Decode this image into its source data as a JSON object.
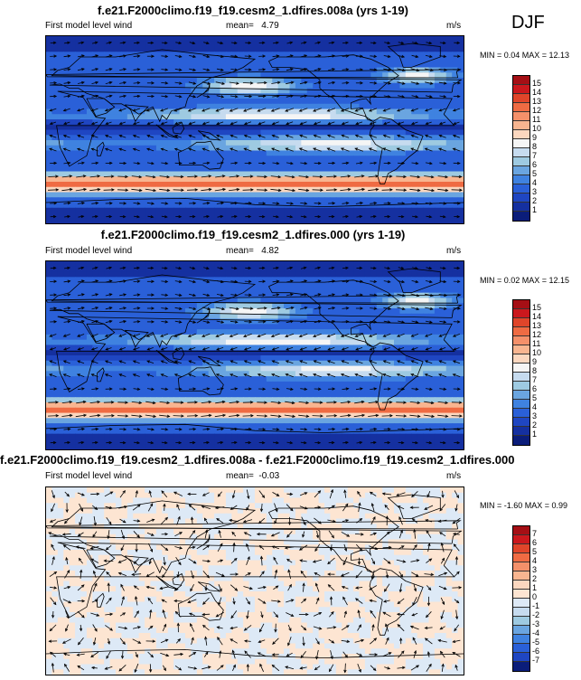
{
  "season": "DJF",
  "panels": [
    {
      "title": "f.e21.F2000climo.f19_f19.cesm2_1.dfires.008a (yrs 1-19)",
      "variable": "First model level wind",
      "mean_label": "mean=",
      "mean_value": "4.79",
      "units": "m/s",
      "minmax": "MIN =  0.04 MAX =  12.13",
      "colorbar": {
        "labels": [
          "15",
          "14",
          "13",
          "12",
          "11",
          "10",
          "9",
          "8",
          "7",
          "6",
          "5",
          "4",
          "3",
          "2",
          "1"
        ],
        "colors": [
          "#a50f15",
          "#cb181d",
          "#e0452a",
          "#ef6b43",
          "#f4906a",
          "#f8b590",
          "#fbd7bf",
          "#f5f5f5",
          "#c6dbef",
          "#9ecae1",
          "#6aa5e0",
          "#3f82e0",
          "#2a60d8",
          "#1f46c2",
          "#1530a0",
          "#0b1d7a"
        ]
      },
      "field": "mean"
    },
    {
      "title": "f.e21.F2000climo.f19_f19.cesm2_1.dfires.000 (yrs 1-19)",
      "variable": "First model level wind",
      "mean_label": "mean=",
      "mean_value": "4.82",
      "units": "m/s",
      "minmax": "MIN =  0.02 MAX =  12.15",
      "colorbar": {
        "labels": [
          "15",
          "14",
          "13",
          "12",
          "11",
          "10",
          "9",
          "8",
          "7",
          "6",
          "5",
          "4",
          "3",
          "2",
          "1"
        ],
        "colors": [
          "#a50f15",
          "#cb181d",
          "#e0452a",
          "#ef6b43",
          "#f4906a",
          "#f8b590",
          "#fbd7bf",
          "#f5f5f5",
          "#c6dbef",
          "#9ecae1",
          "#6aa5e0",
          "#3f82e0",
          "#2a60d8",
          "#1f46c2",
          "#1530a0",
          "#0b1d7a"
        ]
      },
      "field": "mean"
    },
    {
      "title": "f.e21.F2000climo.f19_f19.cesm2_1.dfires.008a - f.e21.F2000climo.f19_f19.cesm2_1.dfires.000",
      "variable": "First model level wind",
      "mean_label": "mean=",
      "mean_value": "-0.03",
      "units": "m/s",
      "minmax": "MIN = -1.60 MAX =  0.99",
      "colorbar": {
        "labels": [
          "7",
          "6",
          "5",
          "4",
          "3",
          "2",
          "1",
          "0",
          "-1",
          "-2",
          "-3",
          "-4",
          "-5",
          "-6",
          "-7"
        ],
        "colors": [
          "#a50f15",
          "#cb181d",
          "#e0452a",
          "#ef6b43",
          "#f4906a",
          "#f8b590",
          "#fbd7bf",
          "#fde5d2",
          "#dde9f6",
          "#c6dbef",
          "#9ecae1",
          "#6aa5e0",
          "#3f82e0",
          "#2a60d8",
          "#1f46c2",
          "#0b1d7a"
        ]
      },
      "field": "diff"
    }
  ]
}
